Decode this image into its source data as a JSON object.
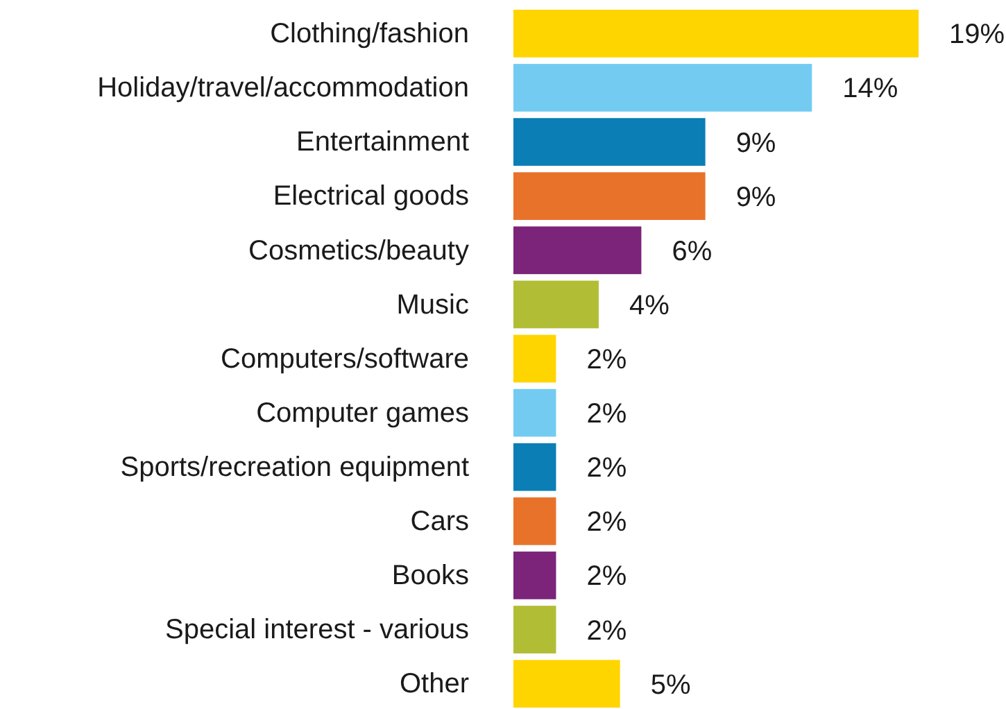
{
  "chart_data": {
    "type": "bar",
    "orientation": "horizontal",
    "categories": [
      "Clothing/fashion",
      "Holiday/travel/accommodation",
      "Entertainment",
      "Electrical goods",
      "Cosmetics/beauty",
      "Music",
      "Computers/software",
      "Computer games",
      "Sports/recreation equipment",
      "Cars",
      "Books",
      "Special interest - various",
      "Other"
    ],
    "values": [
      19,
      14,
      9,
      9,
      6,
      4,
      2,
      2,
      2,
      2,
      2,
      2,
      5
    ],
    "colors": [
      "#ffd500",
      "#73cbf2",
      "#0a7eb5",
      "#e8722a",
      "#7b2479",
      "#b2bd36",
      "#ffd500",
      "#73cbf2",
      "#0a7eb5",
      "#e8722a",
      "#7b2479",
      "#b2bd36",
      "#ffd500"
    ],
    "value_labels": [
      "19%",
      "14%",
      "9%",
      "9%",
      "6%",
      "4%",
      "2%",
      "2%",
      "2%",
      "2%",
      "2%",
      "2%",
      "5%"
    ]
  }
}
